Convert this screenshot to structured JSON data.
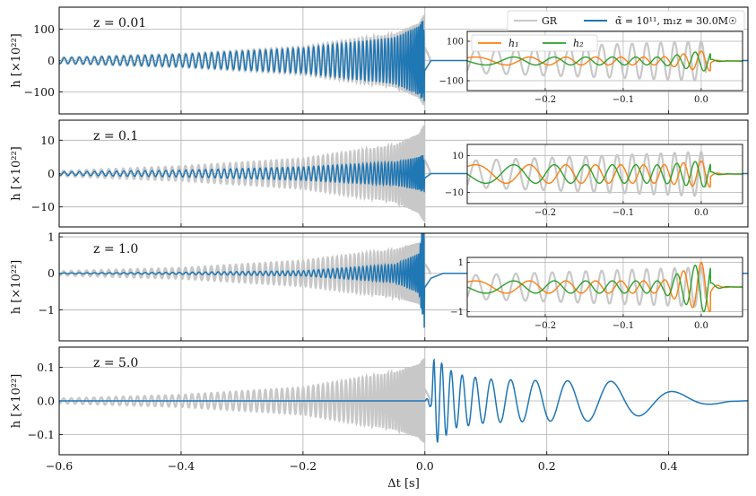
{
  "colors": {
    "gr": "#c8c8c8",
    "modified": "#1f77b4",
    "h1": "#ff7f0e",
    "h2": "#2ca02c",
    "grid": "#b0b0b0",
    "axis": "#000000"
  },
  "chart_data": {
    "type": "line",
    "xlabel": "Δt [s]",
    "xlim": [
      -0.6,
      0.53
    ],
    "xticks": [
      -0.6,
      -0.4,
      -0.2,
      0.0,
      0.2,
      0.4
    ],
    "xtick_labels": [
      "−0.6",
      "−0.4",
      "−0.2",
      "0.0",
      "0.2",
      "0.4"
    ],
    "grid": true,
    "legend": {
      "placement": "top-right of first panel",
      "entries": [
        {
          "label": "GR",
          "color": "#c8c8c8"
        },
        {
          "label": "α̃ = 10¹¹, m₁z = 30.0M☉",
          "color": "#1f77b4"
        }
      ]
    },
    "panels": [
      {
        "annotation": "z = 0.01",
        "ylabel": "h [×10²²]",
        "ylim": [
          -170,
          170
        ],
        "yticks": [
          -100,
          0,
          100
        ],
        "ytick_labels": [
          "−100",
          "0",
          "100"
        ],
        "gr_amplitude": {
          "t": [
            -0.6,
            -0.4,
            -0.2,
            -0.05,
            -0.01,
            0.0,
            0.01
          ],
          "amp": [
            10,
            22,
            45,
            85,
            120,
            150,
            0
          ]
        },
        "modified_amplitude": {
          "t": [
            -0.6,
            -0.4,
            -0.2,
            -0.05,
            -0.01,
            0.0,
            0.01
          ],
          "amp": [
            9,
            20,
            40,
            75,
            110,
            140,
            0
          ]
        },
        "inset": {
          "xlim": [
            -0.3,
            0.053
          ],
          "ylim": [
            -150,
            150
          ],
          "xticks": [
            -0.2,
            -0.1,
            0.0
          ],
          "xtick_labels": [
            "−0.2",
            "−0.1",
            "0.0"
          ],
          "yticks": [
            -100,
            100
          ],
          "ytick_labels": [
            "−100",
            "100"
          ],
          "legend": [
            {
              "label": "h₁",
              "color": "#ff7f0e"
            },
            {
              "label": "h₂",
              "color": "#2ca02c"
            }
          ],
          "gr_amp": 100,
          "h_amp": 20,
          "h_amp_end": 50
        }
      },
      {
        "annotation": "z = 0.1",
        "ylabel": "h [×10²²]",
        "ylim": [
          -16,
          16
        ],
        "yticks": [
          -10,
          0,
          10
        ],
        "ytick_labels": [
          "−10",
          "0",
          "10"
        ],
        "gr_amplitude": {
          "t": [
            -0.6,
            -0.4,
            -0.2,
            -0.05,
            -0.01,
            0.0,
            0.01
          ],
          "amp": [
            0.8,
            2.2,
            4.5,
            8.5,
            12,
            15,
            0
          ]
        },
        "modified_amplitude": {
          "t": [
            -0.6,
            -0.4,
            -0.2,
            -0.05,
            -0.01,
            0.0,
            0.01
          ],
          "amp": [
            0.5,
            1.0,
            2.0,
            3.5,
            5,
            6,
            0
          ]
        },
        "inset": {
          "xlim": [
            -0.3,
            0.053
          ],
          "ylim": [
            -16,
            16
          ],
          "xticks": [
            -0.2,
            -0.1,
            0.0
          ],
          "xtick_labels": [
            "−0.2",
            "−0.1",
            "0.0"
          ],
          "yticks": [
            -10,
            10
          ],
          "ytick_labels": [
            "−10",
            "10"
          ],
          "gr_amp": 12,
          "h_amp": 5,
          "h_amp_end": 7
        }
      },
      {
        "annotation": "z = 1.0",
        "ylabel": "h [×10²²]",
        "ylim": [
          -1.85,
          1.1
        ],
        "yticks": [
          -1,
          0,
          1
        ],
        "ytick_labels": [
          "−1",
          "0",
          "1"
        ],
        "gr_amplitude": {
          "t": [
            -0.6,
            -0.4,
            -0.2,
            -0.05,
            -0.01,
            0.0,
            0.01
          ],
          "amp": [
            0.06,
            0.15,
            0.35,
            0.65,
            0.85,
            0.95,
            0
          ]
        },
        "modified_amplitude": {
          "t": [
            -0.6,
            -0.4,
            -0.2,
            -0.05,
            -0.01,
            0.0,
            0.01,
            0.03
          ],
          "amp": [
            0.01,
            0.03,
            0.07,
            0.25,
            0.55,
            1.7,
            0.6,
            0
          ]
        },
        "inset": {
          "xlim": [
            -0.3,
            0.053
          ],
          "ylim": [
            -1.2,
            1.2
          ],
          "xticks": [
            -0.2,
            -0.1,
            0.0
          ],
          "xtick_labels": [
            "−0.2",
            "−0.1",
            "0.0"
          ],
          "yticks": [
            -1,
            1
          ],
          "ytick_labels": [
            "−1",
            "1"
          ],
          "gr_amp": 0.8,
          "h_amp": 0.25,
          "h_amp_end": 1.0
        }
      },
      {
        "annotation": "z = 5.0",
        "ylabel": "h [×10²²]",
        "ylim": [
          -0.16,
          0.16
        ],
        "yticks": [
          -0.1,
          0.0,
          0.1
        ],
        "ytick_labels": [
          "−0.1",
          "0.0",
          "0.1"
        ],
        "gr_amplitude": {
          "t": [
            -0.6,
            -0.4,
            -0.2,
            -0.05,
            -0.01,
            0.0,
            0.01
          ],
          "amp": [
            0.007,
            0.018,
            0.04,
            0.085,
            0.11,
            0.13,
            0
          ]
        },
        "modified_amplitude": {
          "t": [
            0.0,
            0.01,
            0.015,
            0.05,
            0.1,
            0.2,
            0.3,
            0.4,
            0.5
          ],
          "amp": [
            0,
            0.02,
            0.13,
            0.08,
            0.065,
            0.06,
            0.06,
            0.03,
            0.002
          ]
        }
      }
    ]
  }
}
